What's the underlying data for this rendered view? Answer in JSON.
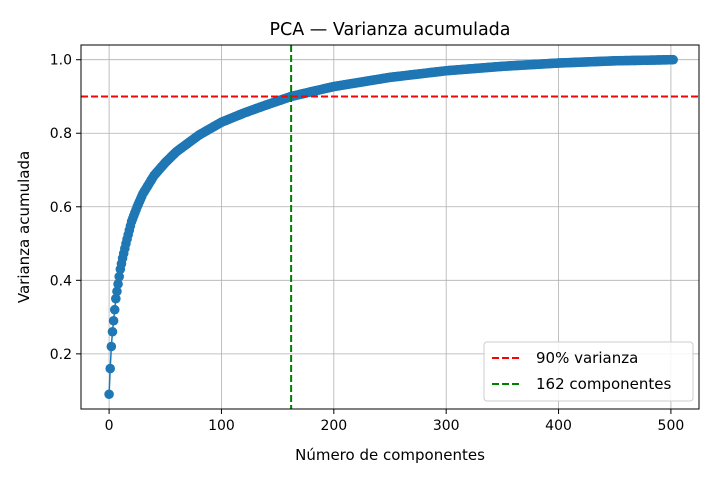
{
  "chart_data": {
    "type": "line",
    "title": "PCA — Varianza acumulada",
    "xlabel": "Número de componentes",
    "ylabel": "Varianza acumulada",
    "xlim": [
      -25,
      525
    ],
    "ylim": [
      0.05,
      1.04
    ],
    "xticks": [
      0,
      100,
      200,
      300,
      400,
      500
    ],
    "yticks": [
      0.2,
      0.4,
      0.6,
      0.8,
      1.0
    ],
    "grid": true,
    "legend_position": "lower-right",
    "n_components": 503,
    "curve_anchors": {
      "x": [
        0,
        1,
        2,
        3,
        4,
        5,
        6,
        8,
        10,
        12,
        15,
        20,
        25,
        30,
        40,
        50,
        60,
        80,
        100,
        120,
        140,
        162,
        180,
        200,
        250,
        300,
        350,
        400,
        450,
        500,
        502
      ],
      "y": [
        0.09,
        0.16,
        0.22,
        0.26,
        0.29,
        0.32,
        0.35,
        0.39,
        0.43,
        0.46,
        0.5,
        0.56,
        0.6,
        0.635,
        0.685,
        0.72,
        0.75,
        0.795,
        0.83,
        0.855,
        0.877,
        0.9,
        0.913,
        0.927,
        0.952,
        0.97,
        0.982,
        0.991,
        0.997,
        1.0,
        1.0
      ]
    },
    "series": [
      {
        "name": "",
        "color": "#1f77b4",
        "marker": "circle",
        "style": "solid"
      }
    ],
    "reference_lines": [
      {
        "orientation": "horizontal",
        "value": 0.9,
        "color": "#ff0000",
        "style": "dashed",
        "label": "90% varianza"
      },
      {
        "orientation": "vertical",
        "value": 162,
        "color": "#008000",
        "style": "dashed",
        "label": "162 componentes"
      }
    ]
  }
}
